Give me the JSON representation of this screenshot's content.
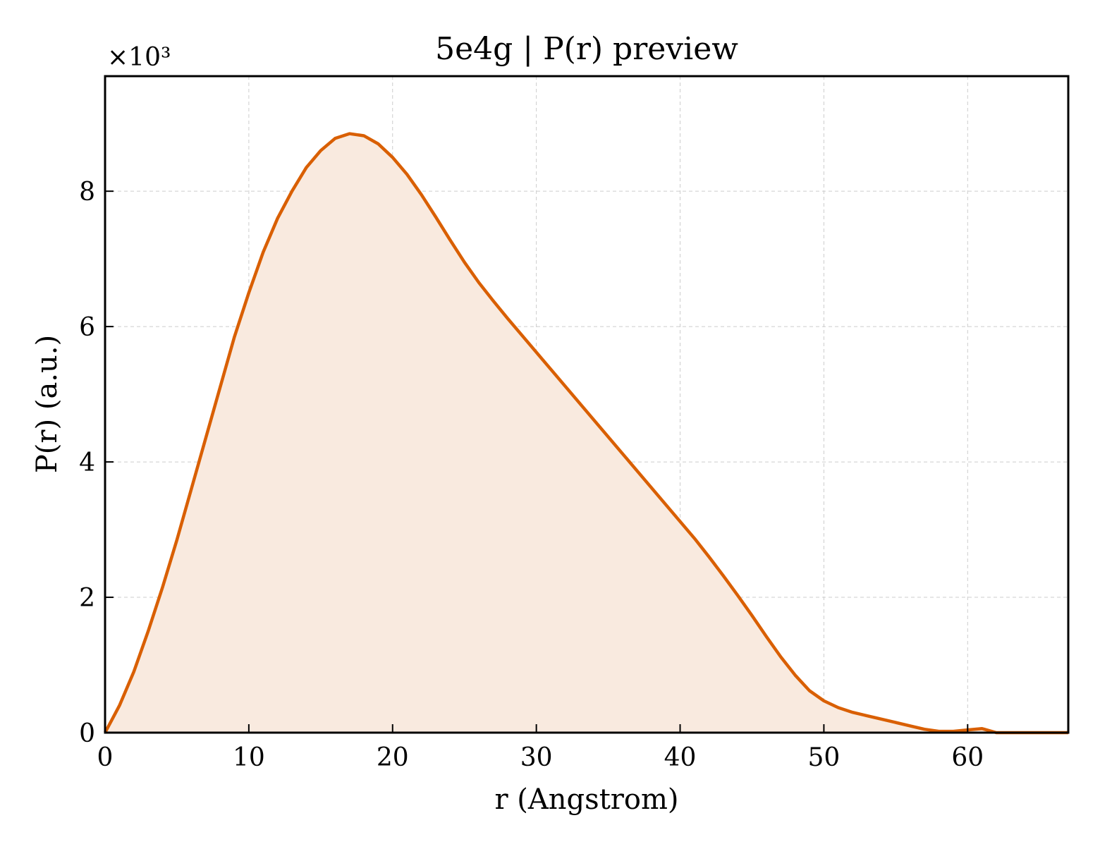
{
  "chart_data": {
    "type": "area",
    "title": "5e4g | P(r) preview",
    "xlabel": "r (Angstrom)",
    "ylabel": "P(r) (a.u.)",
    "y_multiplier_label": "×10³",
    "xlim": [
      0,
      67
    ],
    "ylim": [
      0,
      9.7
    ],
    "x_ticks": [
      0,
      10,
      20,
      30,
      40,
      50,
      60
    ],
    "y_ticks": [
      0,
      2,
      4,
      6,
      8
    ],
    "grid": true,
    "line_color": "#d95f02",
    "fill_color": "#f9eadf",
    "series": [
      {
        "x": [
          0,
          1,
          2,
          3,
          4,
          5,
          6,
          7,
          8,
          9,
          10,
          11,
          12,
          13,
          14,
          15,
          16,
          17,
          18,
          19,
          20,
          21,
          22,
          23,
          24,
          25,
          26,
          27,
          28,
          29,
          30,
          31,
          32,
          33,
          34,
          35,
          36,
          37,
          38,
          39,
          40,
          41,
          42,
          43,
          44,
          45,
          46,
          47,
          48,
          49,
          50,
          51,
          52,
          53,
          54,
          55,
          56,
          57,
          58,
          59,
          60,
          61,
          62,
          63,
          64,
          65,
          66,
          67
        ],
        "y": [
          0,
          0.4,
          0.9,
          1.5,
          2.15,
          2.85,
          3.6,
          4.35,
          5.1,
          5.85,
          6.5,
          7.1,
          7.6,
          8.0,
          8.35,
          8.6,
          8.78,
          8.85,
          8.82,
          8.7,
          8.5,
          8.25,
          7.95,
          7.62,
          7.28,
          6.95,
          6.65,
          6.38,
          6.12,
          5.87,
          5.62,
          5.37,
          5.12,
          4.87,
          4.62,
          4.37,
          4.12,
          3.87,
          3.62,
          3.37,
          3.12,
          2.87,
          2.6,
          2.32,
          2.03,
          1.73,
          1.42,
          1.12,
          0.85,
          0.62,
          0.47,
          0.37,
          0.3,
          0.25,
          0.2,
          0.15,
          0.1,
          0.05,
          0.02,
          0.02,
          0.04,
          0.06,
          0.0,
          0,
          0,
          0,
          0,
          0
        ]
      }
    ]
  }
}
